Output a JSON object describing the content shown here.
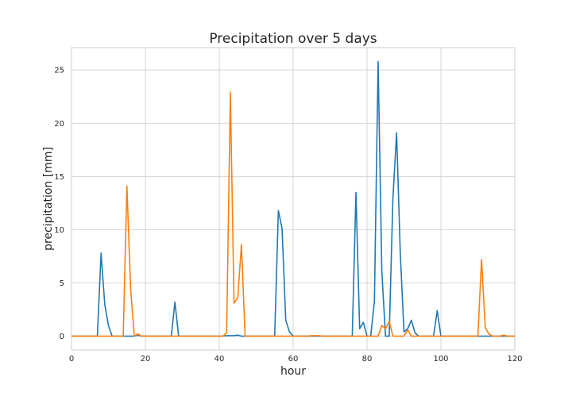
{
  "chart_data": {
    "type": "line",
    "title": "Precipitation over 5 days",
    "xlabel": "hour",
    "ylabel": "precipitation [mm]",
    "xlim": [
      0,
      120
    ],
    "ylim": [
      -1.3,
      27.1
    ],
    "xticks": [
      0,
      20,
      40,
      60,
      80,
      100,
      120
    ],
    "yticks": [
      0,
      5,
      10,
      15,
      20,
      25
    ],
    "grid": true,
    "series": [
      {
        "color": "#1f77b4",
        "x": [
          0,
          1,
          2,
          3,
          4,
          5,
          6,
          7,
          8,
          9,
          10,
          11,
          12,
          13,
          14,
          15,
          16,
          17,
          18,
          19,
          20,
          21,
          22,
          23,
          24,
          25,
          26,
          27,
          28,
          29,
          30,
          31,
          32,
          33,
          34,
          35,
          36,
          37,
          38,
          39,
          40,
          41,
          42,
          43,
          44,
          45,
          46,
          47,
          48,
          49,
          50,
          51,
          52,
          53,
          54,
          55,
          56,
          57,
          58,
          59,
          60,
          61,
          62,
          63,
          64,
          65,
          66,
          67,
          68,
          69,
          70,
          71,
          72,
          73,
          74,
          75,
          76,
          77,
          78,
          79,
          80,
          81,
          82,
          83,
          84,
          85,
          86,
          87,
          88,
          89,
          90,
          91,
          92,
          93,
          94,
          95,
          96,
          97,
          98,
          99,
          100,
          101,
          102,
          103,
          104,
          105,
          106,
          107,
          108,
          109,
          110,
          111,
          112,
          113,
          114,
          115,
          116,
          117,
          118,
          119,
          120
        ],
        "y": [
          0,
          0,
          0,
          0,
          0,
          0,
          0,
          0,
          7.8,
          3,
          1,
          0,
          0,
          0,
          0,
          0,
          0,
          0,
          0.1,
          0,
          0,
          0,
          0,
          0,
          0,
          0,
          0,
          0,
          3.2,
          0,
          0,
          0,
          0,
          0,
          0,
          0,
          0,
          0,
          0,
          0,
          0,
          0,
          0.05,
          0.05,
          0.05,
          0.1,
          0,
          0,
          0,
          0,
          0,
          0,
          0,
          0,
          0,
          0,
          11.8,
          10.1,
          1.5,
          0.4,
          0,
          0,
          0,
          0,
          0,
          0,
          0,
          0,
          0,
          0,
          0,
          0,
          0,
          0,
          0,
          0,
          0,
          13.5,
          0.7,
          1.3,
          0,
          0,
          3.3,
          25.8,
          6.1,
          0,
          0,
          12.9,
          19.1,
          7.8,
          0.4,
          0.7,
          1.5,
          0.3,
          0,
          0,
          0,
          0,
          0,
          2.4,
          0,
          0,
          0,
          0,
          0,
          0,
          0,
          0,
          0,
          0,
          0,
          0,
          0,
          0,
          0,
          0,
          0,
          0,
          0,
          0,
          0
        ]
      },
      {
        "color": "#ff7f0e",
        "x": [
          0,
          1,
          2,
          3,
          4,
          5,
          6,
          7,
          8,
          9,
          10,
          11,
          12,
          13,
          14,
          15,
          16,
          17,
          18,
          19,
          20,
          21,
          22,
          23,
          24,
          25,
          26,
          27,
          28,
          29,
          30,
          31,
          32,
          33,
          34,
          35,
          36,
          37,
          38,
          39,
          40,
          41,
          42,
          43,
          44,
          45,
          46,
          47,
          48,
          49,
          50,
          51,
          52,
          53,
          54,
          55,
          56,
          57,
          58,
          59,
          60,
          61,
          62,
          63,
          64,
          65,
          66,
          67,
          68,
          69,
          70,
          71,
          72,
          73,
          74,
          75,
          76,
          77,
          78,
          79,
          80,
          81,
          82,
          83,
          84,
          85,
          86,
          87,
          88,
          89,
          90,
          91,
          92,
          93,
          94,
          95,
          96,
          97,
          98,
          99,
          100,
          101,
          102,
          103,
          104,
          105,
          106,
          107,
          108,
          109,
          110,
          111,
          112,
          113,
          114,
          115,
          116,
          117,
          118,
          119,
          120
        ],
        "y": [
          0,
          0,
          0,
          0,
          0,
          0,
          0,
          0,
          0,
          0,
          0,
          0,
          0,
          0,
          0,
          14.1,
          4.5,
          0,
          0.2,
          0,
          0,
          0,
          0,
          0,
          0,
          0,
          0,
          0,
          0,
          0,
          0,
          0,
          0,
          0,
          0,
          0,
          0,
          0,
          0,
          0,
          0,
          0,
          0.3,
          22.9,
          3.1,
          3.6,
          8.6,
          0,
          0,
          0,
          0,
          0,
          0,
          0,
          0,
          0,
          0,
          0,
          0,
          0,
          0,
          0,
          0,
          0,
          0,
          0.05,
          0.05,
          0.05,
          0,
          0,
          0,
          0,
          0,
          0,
          0,
          0,
          0,
          0,
          0,
          0,
          0,
          0,
          0,
          0,
          1,
          0.7,
          1.4,
          0,
          0,
          0,
          0,
          0.6,
          0,
          0,
          0,
          0,
          0,
          0,
          0,
          0,
          0,
          0,
          0,
          0,
          0,
          0,
          0,
          0,
          0,
          0,
          0,
          7.2,
          0.8,
          0.2,
          0,
          0,
          0,
          0.1,
          0,
          0,
          0
        ]
      }
    ]
  }
}
